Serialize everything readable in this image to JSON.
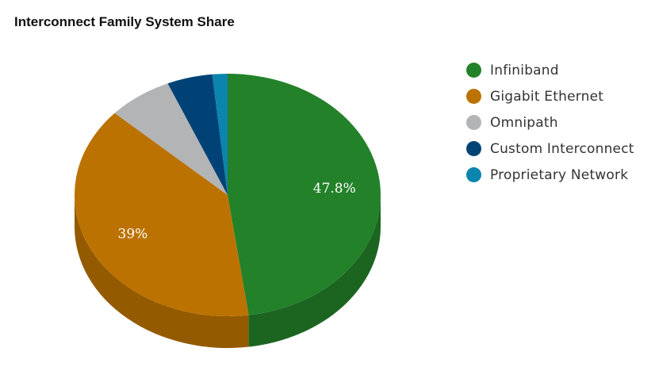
{
  "chart_data": {
    "type": "pie",
    "title": "Interconnect Family System Share",
    "legend_position": "right",
    "three_d": true,
    "series": [
      {
        "name": "Infiniband",
        "value": 47.8,
        "color": "#238129",
        "side_color": "#1b6521",
        "label": "47.8%"
      },
      {
        "name": "Gigabit Ethernet",
        "value": 39,
        "color": "#bb7200",
        "side_color": "#935a00",
        "label": "39%"
      },
      {
        "name": "Omnipath",
        "value": 6.8,
        "color": "#b3b4b6",
        "side_color": "#8c8d8f",
        "label": ""
      },
      {
        "name": "Custom Interconnect",
        "value": 4.8,
        "color": "#004276",
        "side_color": "#00335c",
        "label": ""
      },
      {
        "name": "Proprietary Network",
        "value": 1.6,
        "color": "#0b84ae",
        "side_color": "#086788",
        "label": ""
      }
    ]
  }
}
